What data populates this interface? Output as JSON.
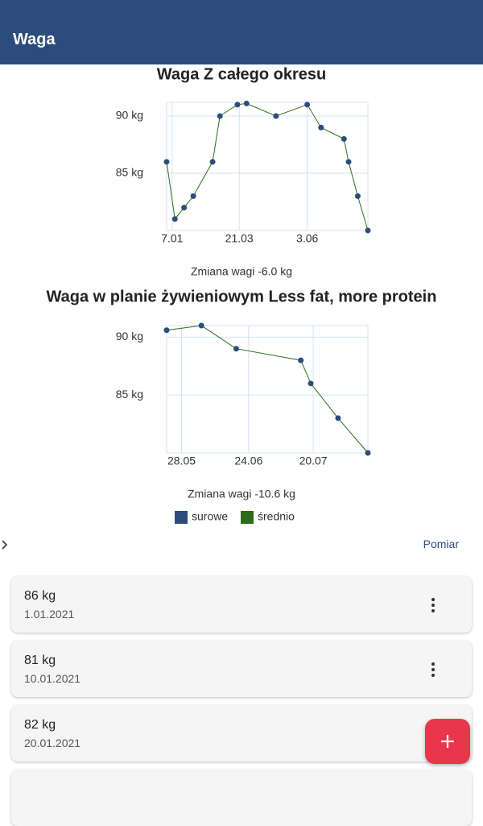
{
  "app_bar": {
    "title": "Waga"
  },
  "charts": [
    {
      "type": "line",
      "title": "Waga Z całego okresu",
      "annotation": "Zmiana wagi -6.0 kg",
      "x": [
        "1.01",
        "10.01",
        "20.01",
        "30.01",
        "20.02",
        "28.02",
        "19.03",
        "29.03",
        "30.04",
        "3.06",
        "18.06",
        "13.07",
        "18.07",
        "28.07",
        "8.08"
      ],
      "values": [
        86,
        81,
        82,
        83,
        86,
        90,
        91,
        91.1,
        90,
        91,
        89,
        88,
        86,
        83,
        80
      ],
      "xlim": [
        "1.01",
        "8.08"
      ],
      "xticks": [
        "7.01",
        "21.03",
        "3.06"
      ],
      "ylim": [
        80,
        91.2
      ],
      "yticks": [
        {
          "value": 85,
          "label": "85 kg"
        },
        {
          "value": 90,
          "label": "90 kg"
        }
      ],
      "grid": true
    },
    {
      "type": "line",
      "title": "Waga w planie żywieniowym Less fat, more protein",
      "annotation": "Zmiana wagi -10.6 kg",
      "x": [
        "22.05",
        "5.06",
        "19.06",
        "15.07",
        "19.07",
        "30.07",
        "11.08"
      ],
      "values": [
        90.6,
        91,
        89,
        88,
        86,
        83,
        80
      ],
      "xlim": [
        "22.05",
        "11.08"
      ],
      "xticks": [
        "28.05",
        "24.06",
        "20.07"
      ],
      "ylim": [
        80,
        91
      ],
      "yticks": [
        {
          "value": 85,
          "label": "85 kg"
        },
        {
          "value": 90,
          "label": "90 kg"
        }
      ],
      "grid": true
    }
  ],
  "legend": [
    {
      "name": "surowe",
      "color": "#2c4d7c"
    },
    {
      "name": "średnio",
      "color": "#2e6b1a"
    }
  ],
  "button": "Pomiar",
  "entries": [
    {
      "weight": "86 kg",
      "date": "1.01.2021"
    },
    {
      "weight": "81 kg",
      "date": "10.01.2021"
    },
    {
      "weight": "82 kg",
      "date": "20.01.2021"
    }
  ]
}
